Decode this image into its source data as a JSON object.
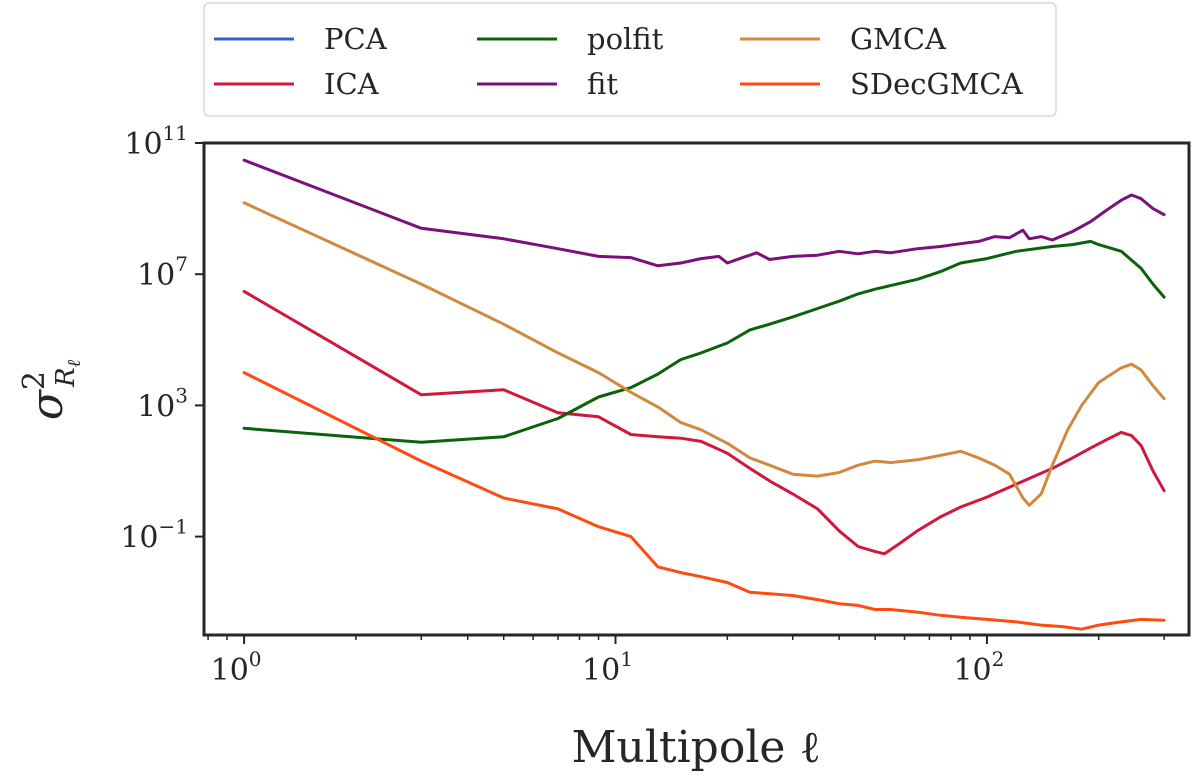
{
  "chart_data": {
    "type": "line",
    "xscale": "log",
    "yscale": "log",
    "xlim": [
      0.78,
      350
    ],
    "ylim": [
      0.0001,
      100000000000
    ],
    "xlabel": "Multipole ℓ",
    "ylabel": "σ²_Rℓ",
    "x_ticks": [
      {
        "base": "10",
        "exp": "0",
        "value": 1
      },
      {
        "base": "10",
        "exp": "1",
        "value": 10
      },
      {
        "base": "10",
        "exp": "2",
        "value": 100
      }
    ],
    "y_ticks": [
      {
        "base": "10",
        "exp": "−1",
        "value": 0.1
      },
      {
        "base": "10",
        "exp": "3",
        "value": 1000
      },
      {
        "base": "10",
        "exp": "7",
        "value": 10000000
      },
      {
        "base": "10",
        "exp": "11",
        "value": 100000000000
      }
    ],
    "grid": false,
    "legend": {
      "position": "top",
      "columns": 3
    },
    "series": [
      {
        "name": "PCA",
        "color": "#3a5fcd",
        "points": []
      },
      {
        "name": "ICA",
        "color": "#d1173c",
        "points": [
          [
            1,
            3000000.0
          ],
          [
            3,
            2100
          ],
          [
            5,
            3000
          ],
          [
            7,
            600
          ],
          [
            9,
            450
          ],
          [
            11,
            130
          ],
          [
            13,
            110
          ],
          [
            15,
            100
          ],
          [
            17,
            80
          ],
          [
            20,
            35
          ],
          [
            23,
            12
          ],
          [
            26,
            5
          ],
          [
            30,
            2
          ],
          [
            35,
            0.7
          ],
          [
            40,
            0.15
          ],
          [
            45,
            0.05
          ],
          [
            50,
            0.035
          ],
          [
            53,
            0.03
          ],
          [
            58,
            0.06
          ],
          [
            65,
            0.15
          ],
          [
            75,
            0.4
          ],
          [
            85,
            0.8
          ],
          [
            100,
            1.6
          ],
          [
            120,
            4
          ],
          [
            150,
            12
          ],
          [
            170,
            25
          ],
          [
            190,
            50
          ],
          [
            210,
            90
          ],
          [
            230,
            150
          ],
          [
            245,
            120
          ],
          [
            260,
            60
          ],
          [
            280,
            10
          ],
          [
            300,
            2.5
          ]
        ]
      },
      {
        "name": "polfit",
        "color": "#0a620a",
        "points": [
          [
            1,
            200
          ],
          [
            3,
            75
          ],
          [
            5,
            110
          ],
          [
            7,
            400
          ],
          [
            9,
            1800
          ],
          [
            11,
            3500
          ],
          [
            13,
            9000
          ],
          [
            15,
            25000
          ],
          [
            17,
            40000
          ],
          [
            20,
            80000
          ],
          [
            23,
            200000
          ],
          [
            26,
            300000
          ],
          [
            30,
            500000
          ],
          [
            35,
            900000
          ],
          [
            40,
            1500000
          ],
          [
            45,
            2500000
          ],
          [
            50,
            3500000
          ],
          [
            55,
            4500000
          ],
          [
            65,
            7000000
          ],
          [
            75,
            12000000
          ],
          [
            85,
            22000000
          ],
          [
            100,
            30000000
          ],
          [
            120,
            50000000
          ],
          [
            150,
            70000000
          ],
          [
            170,
            80000000
          ],
          [
            190,
            100000000
          ],
          [
            200,
            80000000
          ],
          [
            230,
            50000000
          ],
          [
            260,
            15000000
          ],
          [
            280,
            5000000
          ],
          [
            300,
            2000000
          ]
        ]
      },
      {
        "name": "fit",
        "color": "#7b107b",
        "points": [
          [
            1,
            30000000000.0
          ],
          [
            3,
            250000000.0
          ],
          [
            5,
            120000000.0
          ],
          [
            7,
            60000000.0
          ],
          [
            9,
            35000000.0
          ],
          [
            11,
            32000000.0
          ],
          [
            13,
            18000000.0
          ],
          [
            15,
            22000000.0
          ],
          [
            17,
            30000000.0
          ],
          [
            19,
            35000000.0
          ],
          [
            20,
            22000000.0
          ],
          [
            22,
            32000000.0
          ],
          [
            24,
            45000000.0
          ],
          [
            26,
            28000000.0
          ],
          [
            30,
            35000000.0
          ],
          [
            35,
            38000000.0
          ],
          [
            40,
            50000000.0
          ],
          [
            45,
            42000000.0
          ],
          [
            50,
            50000000.0
          ],
          [
            55,
            45000000.0
          ],
          [
            65,
            60000000.0
          ],
          [
            75,
            70000000.0
          ],
          [
            85,
            85000000.0
          ],
          [
            95,
            100000000.0
          ],
          [
            105,
            140000000.0
          ],
          [
            115,
            130000000.0
          ],
          [
            125,
            220000000.0
          ],
          [
            130,
            120000000.0
          ],
          [
            140,
            140000000.0
          ],
          [
            150,
            110000000.0
          ],
          [
            170,
            200000000.0
          ],
          [
            190,
            400000000.0
          ],
          [
            210,
            900000000.0
          ],
          [
            230,
            1800000000.0
          ],
          [
            245,
            2600000000.0
          ],
          [
            260,
            2000000000.0
          ],
          [
            280,
            1000000000.0
          ],
          [
            300,
            650000000.0
          ]
        ]
      },
      {
        "name": "GMCA",
        "color": "#cf8a3f",
        "points": [
          [
            1,
            1500000000.0
          ],
          [
            3,
            5000000.0
          ],
          [
            5,
            300000
          ],
          [
            7,
            40000
          ],
          [
            9,
            10000
          ],
          [
            11,
            2500
          ],
          [
            13,
            900
          ],
          [
            15,
            300
          ],
          [
            17,
            180
          ],
          [
            20,
            70
          ],
          [
            23,
            25
          ],
          [
            26,
            15
          ],
          [
            30,
            8
          ],
          [
            35,
            7
          ],
          [
            40,
            9
          ],
          [
            45,
            15
          ],
          [
            50,
            20
          ],
          [
            55,
            18
          ],
          [
            65,
            22
          ],
          [
            75,
            30
          ],
          [
            85,
            40
          ],
          [
            95,
            25
          ],
          [
            105,
            15
          ],
          [
            115,
            8
          ],
          [
            125,
            1.5
          ],
          [
            130,
            0.9
          ],
          [
            140,
            2.0
          ],
          [
            150,
            15
          ],
          [
            165,
            180
          ],
          [
            180,
            1000
          ],
          [
            200,
            5000
          ],
          [
            230,
            14000
          ],
          [
            245,
            18000
          ],
          [
            260,
            12000
          ],
          [
            280,
            4000
          ],
          [
            300,
            1600
          ]
        ]
      },
      {
        "name": "SDecGMCA",
        "color": "#ff4b0f",
        "points": [
          [
            1,
            10000
          ],
          [
            3,
            20
          ],
          [
            5,
            1.5
          ],
          [
            7,
            0.7
          ],
          [
            9,
            0.2
          ],
          [
            11,
            0.1
          ],
          [
            13,
            0.012
          ],
          [
            15,
            0.008
          ],
          [
            17,
            0.006
          ],
          [
            20,
            0.004
          ],
          [
            23,
            0.002
          ],
          [
            26,
            0.0018
          ],
          [
            30,
            0.0016
          ],
          [
            35,
            0.0012
          ],
          [
            40,
            0.0009
          ],
          [
            45,
            0.0008
          ],
          [
            50,
            0.0006
          ],
          [
            55,
            0.0006
          ],
          [
            65,
            0.0005
          ],
          [
            75,
            0.0004
          ],
          [
            85,
            0.00035
          ],
          [
            100,
            0.0003
          ],
          [
            120,
            0.00025
          ],
          [
            140,
            0.0002
          ],
          [
            160,
            0.00018
          ],
          [
            180,
            0.00015
          ],
          [
            200,
            0.0002
          ],
          [
            230,
            0.00025
          ],
          [
            260,
            0.0003
          ],
          [
            300,
            0.00028
          ]
        ]
      }
    ]
  }
}
